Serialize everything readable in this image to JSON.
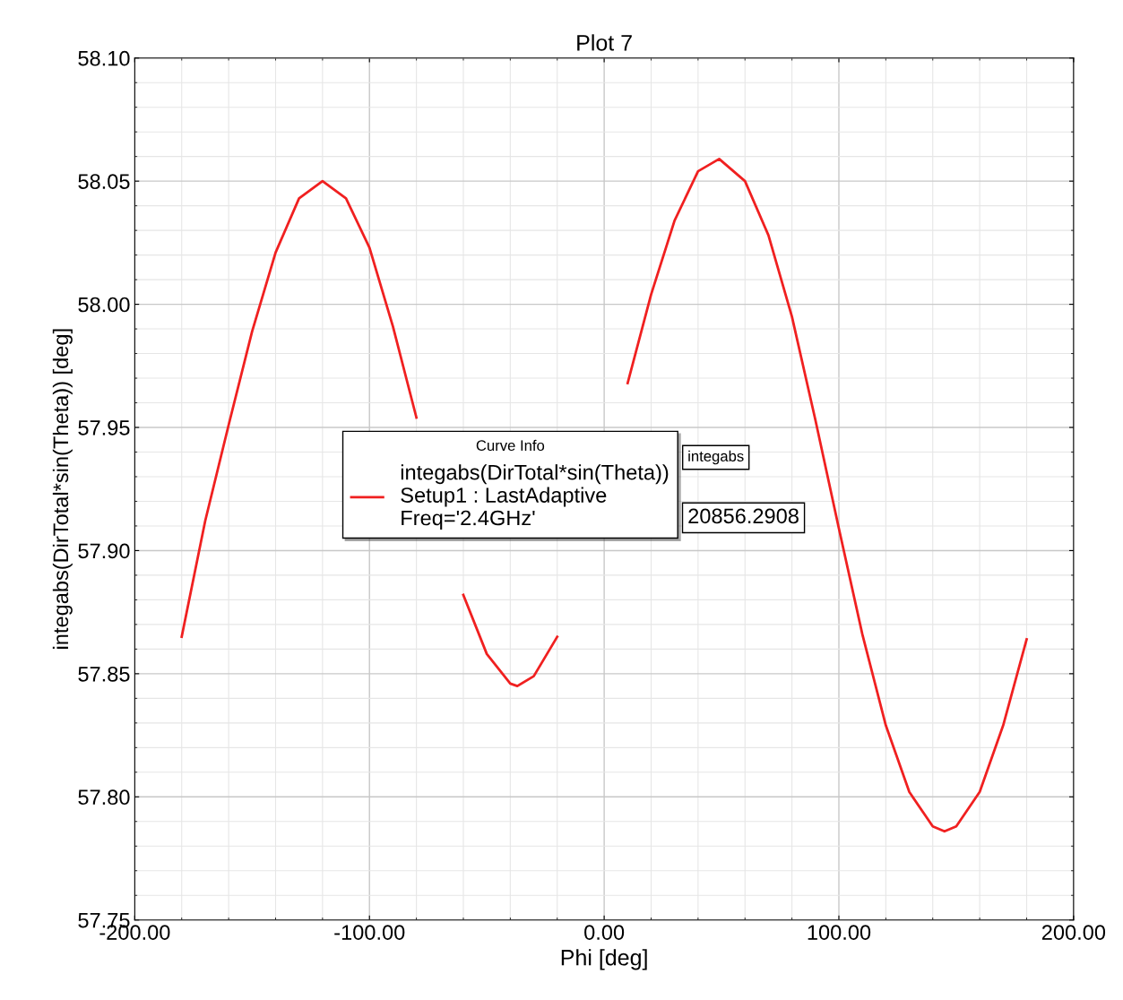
{
  "chart_data": {
    "type": "line",
    "title": "Plot 7",
    "xlabel": "Phi [deg]",
    "ylabel": "integabs(DirTotal*sin(Theta)) [deg]",
    "legend_title": "Curve Info",
    "annotations": [
      "integabs",
      "20856.2908"
    ],
    "x": [
      -180,
      -170,
      -160,
      -150,
      -140,
      -130,
      -120,
      -110,
      -100,
      -90,
      -80,
      -70,
      -60,
      -50,
      -40,
      -37,
      -30,
      -20,
      -10,
      0,
      10,
      20,
      30,
      40,
      49,
      60,
      70,
      80,
      90,
      100,
      110,
      120,
      130,
      140,
      145,
      150,
      160,
      170,
      180
    ],
    "series": [
      {
        "name": "integabs(DirTotal*sin(Theta))\nSetup1 : LastAdaptive\nFreq='2.4GHz'",
        "color": "#f02020",
        "values": [
          57.865,
          57.912,
          57.951,
          57.989,
          58.021,
          58.043,
          58.05,
          58.043,
          58.023,
          57.991,
          57.954,
          null,
          57.882,
          57.858,
          57.846,
          57.845,
          57.849,
          57.865,
          null,
          null,
          57.968,
          58.004,
          58.034,
          58.054,
          58.059,
          58.05,
          58.028,
          57.995,
          57.953,
          57.909,
          57.866,
          57.829,
          57.802,
          57.788,
          57.786,
          57.788,
          57.802,
          57.829,
          57.864
        ]
      }
    ],
    "xlim": [
      -200,
      200
    ],
    "xticks": [
      {
        "value": -200,
        "label": "-200.00"
      },
      {
        "value": -100,
        "label": "-100.00"
      },
      {
        "value": 0,
        "label": "0.00"
      },
      {
        "value": 100,
        "label": "100.00"
      },
      {
        "value": 200,
        "label": "200.00"
      }
    ],
    "ylim": [
      57.75,
      58.1
    ],
    "yticks": [
      {
        "value": 57.75,
        "label": "57.75"
      },
      {
        "value": 57.8,
        "label": "57.80"
      },
      {
        "value": 57.85,
        "label": "57.85"
      },
      {
        "value": 57.9,
        "label": "57.90"
      },
      {
        "value": 57.95,
        "label": "57.95"
      },
      {
        "value": 58.0,
        "label": "58.00"
      },
      {
        "value": 58.05,
        "label": "58.05"
      },
      {
        "value": 58.1,
        "label": "58.10"
      }
    ],
    "grid": true,
    "legend": "center",
    "marker": "none",
    "line_style": "solid"
  }
}
